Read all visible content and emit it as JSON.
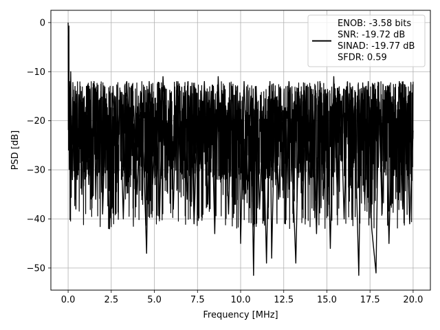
{
  "chart_data": {
    "type": "line",
    "xlabel": "Frequency [MHz]",
    "ylabel": "PSD [dB]",
    "xlim": [
      -1.0,
      21.0
    ],
    "ylim": [
      -54.5,
      2.5
    ],
    "xticks": [
      0.0,
      2.5,
      5.0,
      7.5,
      10.0,
      12.5,
      15.0,
      17.5,
      20.0
    ],
    "xtick_labels": [
      "0.0",
      "2.5",
      "5.0",
      "7.5",
      "10.0",
      "12.5",
      "15.0",
      "17.5",
      "20.0"
    ],
    "yticks": [
      0,
      -10,
      -20,
      -30,
      -40,
      -50
    ],
    "ytick_labels": [
      "0",
      "−10",
      "−20",
      "−30",
      "−40",
      "−50"
    ],
    "grid": true,
    "legend_placement": "upper right",
    "line_color": "#000000",
    "series": [
      {
        "name": "ENOB: -3.58 bits\nSNR: -19.72 dB\nSINAD: -19.77 dB\nSFDR: 0.59",
        "legend_lines": [
          "ENOB: -3.58 bits",
          "SNR: -19.72 dB",
          "SINAD: -19.77 dB",
          "SFDR: 0.59"
        ],
        "description": "noise-like PSD spanning 0 to 20 MHz, peak 0 dB at DC, values mostly between -10 and -35 dB",
        "x": [
          0.0,
          0.02,
          0.05,
          0.08,
          0.1,
          0.15,
          0.2,
          0.25,
          0.3,
          0.35,
          0.4,
          0.45,
          0.5,
          0.6,
          0.7,
          0.8,
          0.9,
          1.0,
          1.1,
          1.2,
          1.3,
          1.4,
          1.5,
          1.6,
          1.7,
          1.8,
          1.9,
          2.0,
          2.2,
          2.4,
          2.6,
          2.8,
          3.0,
          3.2,
          3.4,
          3.6,
          3.8,
          4.0,
          4.2,
          4.4,
          4.55,
          4.7,
          4.9,
          5.1,
          5.3,
          5.5,
          5.7,
          5.9,
          6.1,
          6.3,
          6.5,
          6.7,
          6.9,
          7.1,
          7.3,
          7.5,
          7.7,
          7.9,
          8.1,
          8.3,
          8.5,
          8.7,
          8.9,
          9.1,
          9.3,
          9.5,
          9.7,
          9.9,
          10.0,
          10.2,
          10.4,
          10.6,
          10.75,
          10.9,
          11.1,
          11.3,
          11.5,
          11.7,
          11.8,
          12.0,
          12.2,
          12.4,
          12.6,
          12.8,
          13.0,
          13.2,
          13.4,
          13.6,
          13.8,
          14.0,
          14.2,
          14.4,
          14.6,
          14.8,
          15.0,
          15.2,
          15.4,
          15.6,
          15.8,
          16.0,
          16.2,
          16.4,
          16.6,
          16.85,
          17.0,
          17.2,
          17.4,
          17.6,
          17.85,
          18.0,
          18.2,
          18.4,
          18.6,
          18.8,
          19.0,
          19.2,
          19.4,
          19.6,
          19.8,
          20.0
        ],
        "y": [
          0.0,
          -8.0,
          -22.0,
          -12.0,
          -25.0,
          -10.0,
          -24.0,
          -32.0,
          -15.0,
          -27.0,
          -13.0,
          -38.0,
          -18.0,
          -30.0,
          -14.0,
          -35.0,
          -20.0,
          -28.0,
          -13.0,
          -33.0,
          -17.0,
          -26.0,
          -12.0,
          -36.0,
          -19.0,
          -29.0,
          -14.0,
          -39.0,
          -16.0,
          -42.0,
          -13.0,
          -31.0,
          -15.0,
          -40.0,
          -12.0,
          -28.0,
          -17.0,
          -35.0,
          -14.0,
          -30.0,
          -47.0,
          -12.0,
          -33.0,
          -18.0,
          -40.0,
          -11.0,
          -27.0,
          -16.0,
          -38.0,
          -12.0,
          -30.0,
          -15.0,
          -36.0,
          -13.0,
          -41.0,
          -19.0,
          -29.0,
          -12.0,
          -37.0,
          -14.0,
          -43.0,
          -11.0,
          -31.0,
          -17.0,
          -39.0,
          -13.0,
          -28.0,
          -16.0,
          -45.0,
          -12.0,
          -34.0,
          -15.0,
          -51.5,
          -13.0,
          -38.0,
          -18.0,
          -49.0,
          -12.0,
          -48.0,
          -14.0,
          -36.0,
          -17.0,
          -41.0,
          -12.0,
          -30.0,
          -49.0,
          -15.0,
          -38.0,
          -13.0,
          -33.0,
          -18.0,
          -43.0,
          -12.0,
          -36.0,
          -15.0,
          -46.0,
          -11.0,
          -35.0,
          -16.0,
          -40.0,
          -13.0,
          -29.0,
          -17.0,
          -51.5,
          -14.0,
          -37.0,
          -12.0,
          -42.0,
          -51.0,
          -15.0,
          -39.0,
          -13.0,
          -45.0,
          -17.0,
          -31.0,
          -12.0,
          -38.0,
          -16.0,
          -41.0,
          -22.0
        ]
      }
    ]
  }
}
